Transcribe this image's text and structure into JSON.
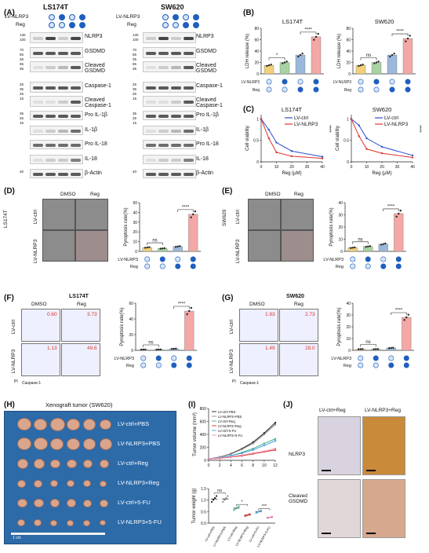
{
  "panels": {
    "A": {
      "label": "(A)",
      "cells": [
        "LS174T",
        "SW620"
      ],
      "row_labels": [
        "LV-NLRP3",
        "Reg"
      ],
      "blots_left": [
        "NLRP3",
        "GSDMD",
        "Cleaved GSDMD",
        "Caspase-1",
        "Cleaved Caspase-1",
        "Pro IL-1β",
        "IL-1β",
        "Pro IL-18",
        "IL-18",
        "β-Actin"
      ],
      "blots_right": [
        "NLRP3",
        "GSDMD",
        "Cleaved GSDMD",
        "Caspase-1",
        "Cleaved Caspase-1",
        "Pro IL-1β",
        "IL-1β",
        "Pro IL-18",
        "IL-18",
        "β-Actin"
      ],
      "mw_left": [
        "130",
        "100",
        "70",
        "55",
        "35",
        "55",
        "35",
        "25",
        "35",
        "25",
        "15",
        "35",
        "25",
        "15",
        "40"
      ],
      "mw_right": [
        "130",
        "100",
        "70",
        "55",
        "35",
        "55",
        "35",
        "25",
        "35",
        "25",
        "15",
        "35",
        "25",
        "15",
        "40"
      ]
    },
    "B": {
      "label": "(B)"
    },
    "C": {
      "label": "(C)"
    },
    "D": {
      "label": "(D)",
      "cell": "LS174T",
      "cols": [
        "DMSO",
        "Reg"
      ],
      "rows": [
        "LV-ctrl",
        "LV-NLRP3"
      ]
    },
    "E": {
      "label": "(E)",
      "cell": "SW620",
      "cols": [
        "DMSO",
        "Reg"
      ],
      "rows": [
        "LV-ctrl",
        "LV-NLRP3"
      ]
    },
    "F": {
      "label": "(F)",
      "title": "LS174T",
      "cols": [
        "DMSO",
        "Reg"
      ],
      "rows": [
        "LV-ctrl",
        "LV-NLRP3"
      ],
      "values": [
        "0.60",
        "3.73",
        "1.13",
        "49.6"
      ],
      "xaxis": "Caspase-1",
      "yaxis": "PI"
    },
    "G": {
      "label": "(G)",
      "title": "SW620",
      "cols": [
        "DMSO",
        "Reg"
      ],
      "rows": [
        "LV-ctrl",
        "LV-NLRP3"
      ],
      "values": [
        "1.93",
        "2.73",
        "1.49",
        "28.0"
      ],
      "xaxis": "Caspase-1",
      "yaxis": "PI"
    },
    "H": {
      "label": "(H)",
      "title": "Xenograft tumor (SW620)",
      "groups": [
        "LV-ctrl+PBS",
        "LV-NLRP3+PBS",
        "LV-ctrl+Reg",
        "LV-NLRP3+Reg",
        "LV-ctrl+5-FU",
        "LV-NLRP3+5-FU"
      ],
      "ruler": "1 cm"
    },
    "I": {
      "label": "(I)",
      "ylabel_top": "Tumor volume (mm³)",
      "ylabel_bottom": "Tumor weight (g)",
      "legend": [
        "LV-ctrl+PBS",
        "LV-NLRP3+PBS",
        "LV-ctrl+Reg",
        "LV-NLRP3+Reg",
        "LV-ctrl+5-FU",
        "LV-NLRP3+5-FU"
      ]
    },
    "J": {
      "label": "(J)",
      "cols": [
        "LV-ctrl+Reg",
        "LV-NLRP3+Reg"
      ],
      "rows": [
        "NLRP3",
        "Cleaved GSDMD"
      ]
    }
  },
  "sig": {
    "ns": "ns",
    "star1": "*",
    "star3": "***",
    "star4": "****"
  },
  "chart_data": [
    {
      "type": "bar",
      "title": "LS174T",
      "ylabel": "LDH release (%)",
      "ylim": [
        0,
        80
      ],
      "yticks": [
        0,
        20,
        40,
        60,
        80
      ],
      "values": [
        15,
        20,
        33,
        65
      ],
      "colors": [
        "#f2d07a",
        "#a9d3a2",
        "#9ab8dc",
        "#f3a8a6"
      ],
      "sig": [
        "*",
        "****"
      ]
    },
    {
      "type": "bar",
      "title": "SW620",
      "ylabel": "LDH release (%)",
      "ylim": [
        0,
        80
      ],
      "yticks": [
        0,
        20,
        40,
        60,
        80
      ],
      "values": [
        15,
        20,
        33,
        62
      ],
      "colors": [
        "#f2d07a",
        "#a9d3a2",
        "#9ab8dc",
        "#f3a8a6"
      ],
      "sig": [
        "ns",
        "****"
      ]
    },
    {
      "type": "line",
      "title": "LS174T",
      "xlabel": "Reg (μM)",
      "ylabel": "Cell viability",
      "x": [
        0,
        5,
        10,
        20,
        40
      ],
      "xticks": [
        0,
        10,
        20,
        30,
        40
      ],
      "yticks": [
        0.0,
        0.5,
        1.0
      ],
      "ylim": [
        0,
        1.1
      ],
      "series": [
        {
          "name": "LV-ctrl",
          "values": [
            1.0,
            0.75,
            0.45,
            0.25,
            0.12
          ],
          "color": "#2b4fd1"
        },
        {
          "name": "LV-NLRP3",
          "values": [
            1.0,
            0.55,
            0.22,
            0.13,
            0.08
          ],
          "color": "#e0322b"
        }
      ],
      "sig": "****"
    },
    {
      "type": "line",
      "title": "SW620",
      "xlabel": "Reg (μM)",
      "ylabel": "Cell viability",
      "x": [
        0,
        5,
        10,
        20,
        40
      ],
      "xticks": [
        0,
        10,
        20,
        30,
        40
      ],
      "yticks": [
        0.0,
        0.5,
        1.0
      ],
      "ylim": [
        0,
        1.1
      ],
      "series": [
        {
          "name": "LV-ctrl",
          "values": [
            1.0,
            0.85,
            0.55,
            0.35,
            0.15
          ],
          "color": "#2b4fd1"
        },
        {
          "name": "LV-NLRP3",
          "values": [
            1.0,
            0.6,
            0.3,
            0.2,
            0.1
          ],
          "color": "#e0322b"
        }
      ],
      "sig": "****"
    },
    {
      "type": "bar",
      "ylabel": "Pyroptosis rate(%)",
      "ylim": [
        0,
        50
      ],
      "yticks": [
        0,
        10,
        20,
        30,
        40,
        50
      ],
      "values": [
        4,
        3,
        5,
        38
      ],
      "colors": [
        "#f2d07a",
        "#a9d3a2",
        "#9ab8dc",
        "#f3a8a6"
      ],
      "sig": [
        "ns",
        "****"
      ]
    },
    {
      "type": "bar",
      "ylabel": "Pyroptosis rate(%)",
      "ylim": [
        0,
        40
      ],
      "yticks": [
        0,
        10,
        20,
        30,
        40
      ],
      "values": [
        3,
        4,
        6,
        31
      ],
      "colors": [
        "#f2d07a",
        "#a9d3a2",
        "#9ab8dc",
        "#f3a8a6"
      ],
      "sig": [
        "ns",
        "****"
      ]
    },
    {
      "type": "bar",
      "ylabel": "Pyroptosis rate(%)",
      "ylim": [
        0,
        60
      ],
      "yticks": [
        0,
        20,
        40,
        60
      ],
      "values": [
        1,
        1,
        2,
        50
      ],
      "colors": [
        "#f2d07a",
        "#a9d3a2",
        "#9ab8dc",
        "#f3a8a6"
      ],
      "sig": [
        "ns",
        "****"
      ]
    },
    {
      "type": "bar",
      "ylabel": "Pyroptosis rate(%)",
      "ylim": [
        0,
        40
      ],
      "yticks": [
        0,
        10,
        20,
        30,
        40
      ],
      "values": [
        1,
        1,
        2,
        28
      ],
      "colors": [
        "#f2d07a",
        "#a9d3a2",
        "#9ab8dc",
        "#f3a8a6"
      ],
      "sig": [
        "ns",
        "****"
      ]
    },
    {
      "type": "line",
      "ylabel": "Tumor volume (mm³)",
      "x": [
        0,
        2,
        4,
        6,
        8,
        10,
        12
      ],
      "xticks": [
        0,
        2,
        4,
        6,
        8,
        10,
        12
      ],
      "ylim": [
        0,
        800
      ],
      "yticks": [
        0,
        200,
        400,
        600,
        800
      ],
      "series": [
        {
          "name": "LV-ctrl+PBS",
          "values": [
            20,
            50,
            100,
            180,
            280,
            420,
            580
          ],
          "color": "#222222"
        },
        {
          "name": "LV-NLRP3+PBS",
          "values": [
            20,
            50,
            95,
            170,
            260,
            400,
            550
          ],
          "color": "#888888"
        },
        {
          "name": "LV-ctrl+Reg",
          "values": [
            20,
            40,
            70,
            120,
            180,
            260,
            330
          ],
          "color": "#3fae8a"
        },
        {
          "name": "LV-NLRP3+Reg",
          "values": [
            20,
            30,
            50,
            70,
            100,
            130,
            160
          ],
          "color": "#e0322b"
        },
        {
          "name": "LV-ctrl+5-FU",
          "values": [
            20,
            40,
            70,
            110,
            160,
            230,
            300
          ],
          "color": "#4aa3df"
        },
        {
          "name": "LV-NLRP3+5-FU",
          "values": [
            20,
            35,
            55,
            80,
            110,
            140,
            180
          ],
          "color": "#f08fb0"
        }
      ]
    },
    {
      "type": "scatter",
      "ylabel": "Tumor weight (g)",
      "ylim": [
        0,
        1.5
      ],
      "yticks": [
        0.0,
        0.5,
        1.0,
        1.5
      ],
      "categories": [
        "LV-ctrl+PBS",
        "LV-NLRP3+PBS",
        "LV-ctrl+Reg",
        "LV-NLRP3+Reg",
        "LV-ctrl+5-FU",
        "LV-NLRP3+5-FU"
      ],
      "values": [
        1.05,
        1.05,
        0.65,
        0.35,
        0.5,
        0.25
      ],
      "sig": [
        "ns",
        "*",
        "***"
      ]
    }
  ]
}
